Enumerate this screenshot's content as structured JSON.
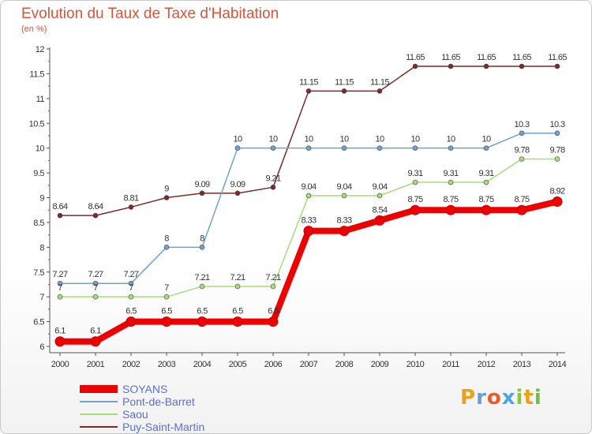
{
  "title": "Evolution du Taux de Taxe d'Habitation",
  "subtitle": "(en %)",
  "brand": {
    "letters": [
      "P",
      "r",
      "o",
      "x",
      "i",
      "t",
      "i"
    ],
    "colors": [
      "#e8a21c",
      "#6b9fd4",
      "#e85c2a",
      "#4aa6e0",
      "#8cc43c",
      "#e8a21c",
      "#6cc04a"
    ]
  },
  "chart_data": {
    "type": "line",
    "x": [
      "2000",
      "2001",
      "2002",
      "2003",
      "2004",
      "2005",
      "2006",
      "2007",
      "2008",
      "2009",
      "2010",
      "2011",
      "2012",
      "2013",
      "2014"
    ],
    "ylim": [
      6,
      12
    ],
    "yticks": [
      "6",
      "6.5",
      "7",
      "7.5",
      "8",
      "8.5",
      "9",
      "9.5",
      "10",
      "10.5",
      "11",
      "11.5",
      "12"
    ],
    "grid": false,
    "legend_position": "bottom-left",
    "series": [
      {
        "name": "SOYANS",
        "color": "#ee0000",
        "values": [
          6.1,
          6.1,
          6.5,
          6.5,
          6.5,
          6.5,
          6.5,
          8.33,
          8.33,
          8.54,
          8.75,
          8.75,
          8.75,
          8.75,
          8.92
        ],
        "labels": [
          "6.1",
          "6.1",
          "6.5",
          "6.5",
          "6.5",
          "6.5",
          "6.5",
          "8.33",
          "8.33",
          "8.54",
          "8.75",
          "8.75",
          "8.75",
          "8.75",
          "8.92"
        ]
      },
      {
        "name": "Pont-de-Barret",
        "color": "#6fa3cf",
        "values": [
          7.27,
          7.27,
          7.27,
          8,
          8,
          10,
          10,
          10,
          10,
          10,
          10,
          10,
          10,
          10.3,
          10.3
        ],
        "labels": [
          "7.27",
          "7.27",
          "7.27",
          "8",
          "8",
          "10",
          "10",
          "10",
          "10",
          "10",
          "10",
          "10",
          "10",
          "10.3",
          "10.3"
        ]
      },
      {
        "name": "Saou",
        "color": "#a6dd7a",
        "values": [
          7,
          7,
          7,
          7,
          7.21,
          7.21,
          7.21,
          9.04,
          9.04,
          9.04,
          9.31,
          9.31,
          9.31,
          9.78,
          9.78
        ],
        "labels": [
          "7",
          "7",
          "7",
          "7",
          "7.21",
          "7.21",
          "7.21",
          "9.04",
          "9.04",
          "9.04",
          "9.31",
          "9.31",
          "9.31",
          "9.78",
          "9.78"
        ]
      },
      {
        "name": "Puy-Saint-Martin",
        "color": "#7a2a2a",
        "values": [
          8.64,
          8.64,
          8.81,
          9,
          9.09,
          9.09,
          9.21,
          11.15,
          11.15,
          11.15,
          11.65,
          11.65,
          11.65,
          11.65,
          11.65
        ],
        "labels": [
          "8.64",
          "8.64",
          "8.81",
          "9",
          "9.09",
          "9.09",
          "9.21",
          "11.15",
          "11.15",
          "11.15",
          "11.65",
          "11.65",
          "11.65",
          "11.65",
          "11.65"
        ]
      }
    ]
  }
}
